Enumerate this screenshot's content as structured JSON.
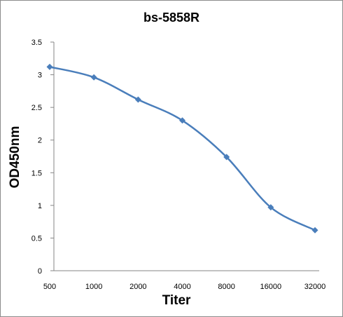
{
  "chart_data": {
    "type": "line",
    "title": "bs-5858R",
    "xlabel": "Titer",
    "ylabel": "OD450nm",
    "categories": [
      "500",
      "1000",
      "2000",
      "4000",
      "8000",
      "16000",
      "32000"
    ],
    "series": [
      {
        "values": [
          3.12,
          2.96,
          2.62,
          2.3,
          1.74,
          0.97,
          0.62
        ]
      }
    ],
    "ylim": [
      0,
      3.5
    ],
    "yticks": [
      "0",
      "0.5",
      "1",
      "1.5",
      "2",
      "2.5",
      "3",
      "3.5"
    ],
    "grid": false,
    "legend": "none",
    "series_color": "#4a7ebb",
    "marker": "diamond"
  }
}
